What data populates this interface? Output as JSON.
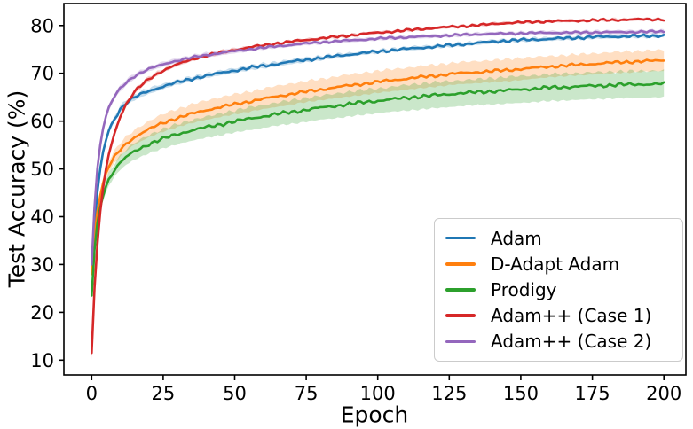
{
  "chart_data": {
    "type": "line",
    "title": "",
    "xlabel": "Epoch",
    "ylabel": "Test Accuracy (%)",
    "xlim": [
      -9.7,
      207.7
    ],
    "ylim": [
      6.9,
      84.6
    ],
    "xticks": [
      0,
      25,
      50,
      75,
      100,
      125,
      150,
      175,
      200
    ],
    "yticks": [
      10,
      20,
      30,
      40,
      50,
      60,
      70,
      80
    ],
    "grid": false,
    "legend_position": "lower right",
    "band_opacity": 0.25,
    "axis_color": "#000000",
    "epochs": [
      0,
      1,
      2,
      3,
      4,
      5,
      6,
      8,
      10,
      12,
      14,
      16,
      20,
      24,
      28,
      32,
      36,
      40,
      48,
      56,
      64,
      72,
      80,
      88,
      96,
      104,
      112,
      120,
      128,
      136,
      144,
      152,
      160,
      168,
      176,
      184,
      192,
      200
    ],
    "series": [
      {
        "name": "Adam",
        "color": "#1f77b4",
        "jitter": 0.3,
        "values": [
          29.0,
          38.0,
          45.0,
          50.0,
          53.5,
          56.0,
          58.0,
          60.5,
          62.5,
          63.8,
          64.6,
          65.3,
          66.3,
          67.1,
          67.8,
          68.4,
          69.0,
          69.5,
          70.4,
          71.2,
          71.9,
          72.6,
          73.2,
          73.8,
          74.3,
          74.8,
          75.2,
          75.6,
          76.0,
          76.4,
          76.8,
          77.0,
          77.2,
          77.4,
          77.6,
          77.7,
          77.8,
          77.9
        ],
        "band": [
          1.2,
          1.0,
          0.9,
          0.8,
          0.7,
          0.7,
          0.6,
          0.6,
          0.7,
          0.7,
          0.6,
          0.6,
          0.6,
          0.6,
          0.5,
          0.5,
          0.5,
          0.5,
          0.5,
          0.5,
          0.5,
          0.5,
          0.5,
          0.4,
          0.4,
          0.4,
          0.4,
          0.4,
          0.4,
          0.4,
          0.4,
          0.4,
          0.4,
          0.4,
          0.4,
          0.4,
          0.4,
          0.4
        ]
      },
      {
        "name": "D-Adapt Adam",
        "color": "#ff7f0e",
        "jitter": 0.3,
        "values": [
          28.0,
          36.0,
          41.0,
          44.5,
          47.0,
          49.0,
          50.5,
          52.5,
          54.0,
          55.2,
          56.2,
          57.0,
          58.3,
          59.4,
          60.3,
          61.0,
          61.7,
          62.3,
          63.3,
          64.2,
          65.1,
          65.9,
          66.6,
          67.3,
          67.9,
          68.5,
          69.0,
          69.5,
          70.0,
          70.3,
          70.6,
          71.0,
          71.4,
          71.7,
          72.0,
          72.3,
          72.5,
          72.7
        ],
        "band": [
          1.0,
          1.0,
          1.0,
          1.1,
          1.1,
          1.2,
          1.2,
          1.3,
          1.4,
          1.5,
          1.5,
          1.6,
          1.7,
          1.8,
          1.9,
          1.9,
          2.0,
          2.0,
          2.1,
          2.1,
          2.2,
          2.2,
          2.2,
          2.3,
          2.3,
          2.3,
          2.3,
          2.3,
          2.3,
          2.3,
          2.3,
          2.3,
          2.2,
          2.2,
          2.2,
          2.2,
          2.2,
          2.2
        ]
      },
      {
        "name": "Prodigy",
        "color": "#2ca02c",
        "jitter": 0.35,
        "values": [
          23.5,
          33.0,
          38.5,
          42.0,
          44.5,
          46.3,
          47.8,
          49.8,
          51.3,
          52.4,
          53.3,
          54.0,
          55.2,
          56.1,
          56.9,
          57.6,
          58.2,
          58.7,
          59.7,
          60.6,
          61.4,
          62.1,
          62.8,
          63.4,
          64.0,
          64.5,
          65.0,
          65.4,
          65.8,
          66.1,
          66.4,
          66.7,
          67.0,
          67.2,
          67.4,
          67.6,
          67.7,
          67.8
        ],
        "band": [
          1.0,
          1.0,
          1.1,
          1.1,
          1.2,
          1.3,
          1.3,
          1.4,
          1.5,
          1.6,
          1.7,
          1.8,
          1.9,
          2.0,
          2.1,
          2.1,
          2.2,
          2.2,
          2.3,
          2.4,
          2.4,
          2.5,
          2.5,
          2.6,
          2.6,
          2.6,
          2.7,
          2.7,
          2.7,
          2.7,
          2.8,
          2.8,
          2.8,
          2.8,
          2.8,
          2.8,
          2.8,
          2.8
        ]
      },
      {
        "name": "Adam++ (Case 1)",
        "color": "#d62728",
        "jitter": 0.25,
        "values": [
          11.5,
          25.0,
          34.0,
          41.0,
          46.0,
          50.0,
          53.0,
          57.5,
          61.0,
          63.5,
          65.3,
          66.8,
          68.8,
          70.3,
          71.4,
          72.3,
          73.1,
          73.7,
          74.7,
          75.5,
          76.2,
          76.8,
          77.3,
          77.8,
          78.3,
          78.7,
          79.1,
          79.5,
          79.8,
          80.1,
          80.5,
          80.7,
          80.9,
          81.0,
          81.1,
          81.2,
          81.3,
          81.3
        ],
        "band": [
          1.5,
          1.2,
          1.0,
          0.9,
          0.8,
          0.8,
          0.7,
          0.7,
          0.6,
          0.6,
          0.5,
          0.5,
          0.5,
          0.4,
          0.4,
          0.4,
          0.4,
          0.4,
          0.4,
          0.3,
          0.3,
          0.3,
          0.3,
          0.3,
          0.3,
          0.3,
          0.3,
          0.3,
          0.3,
          0.3,
          0.3,
          0.3,
          0.3,
          0.3,
          0.3,
          0.3,
          0.3,
          0.3
        ]
      },
      {
        "name": "Adam++ (Case 2)",
        "color": "#9467bd",
        "jitter": 0.22,
        "values": [
          30.0,
          42.0,
          50.0,
          55.0,
          58.5,
          61.0,
          62.8,
          65.2,
          66.8,
          68.0,
          69.0,
          69.8,
          70.9,
          71.7,
          72.4,
          72.9,
          73.4,
          73.8,
          74.5,
          75.1,
          75.6,
          76.1,
          76.5,
          76.8,
          77.1,
          77.4,
          77.6,
          77.8,
          78.0,
          78.2,
          78.3,
          78.4,
          78.5,
          78.5,
          78.6,
          78.6,
          78.7,
          78.7
        ],
        "band": [
          1.0,
          0.9,
          0.9,
          0.8,
          0.8,
          0.7,
          0.7,
          0.6,
          0.6,
          0.6,
          0.6,
          0.5,
          0.5,
          0.5,
          0.5,
          0.5,
          0.5,
          0.5,
          0.5,
          0.4,
          0.4,
          0.4,
          0.4,
          0.4,
          0.4,
          0.4,
          0.4,
          0.4,
          0.4,
          0.4,
          0.4,
          0.4,
          0.4,
          0.4,
          0.4,
          0.4,
          0.4,
          0.4
        ]
      }
    ]
  }
}
